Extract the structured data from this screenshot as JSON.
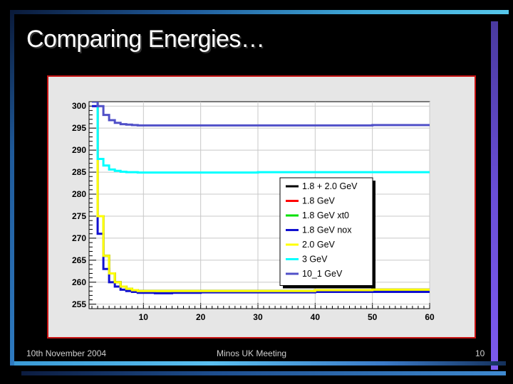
{
  "slide": {
    "title": "Comparing Energies…",
    "footer_date": "10th November 2004",
    "footer_meeting": "Minos UK Meeting",
    "page_number": "10"
  },
  "colors": {
    "frame_border": "#c81414",
    "chart_background": "#e6e6e6",
    "slide_background": "#000000"
  },
  "chart_data": {
    "type": "line",
    "title": "",
    "xlabel": "",
    "ylabel": "",
    "xlim": [
      0.5,
      60
    ],
    "ylim": [
      254,
      301
    ],
    "grid": true,
    "legend_position": "right",
    "x_ticks": [
      10,
      20,
      30,
      40,
      50,
      60
    ],
    "y_ticks": [
      255,
      260,
      265,
      270,
      275,
      280,
      285,
      290,
      295,
      300
    ],
    "x": [
      1,
      2,
      3,
      4,
      5,
      6,
      7,
      8,
      9,
      10,
      12,
      15,
      20,
      30,
      40,
      50,
      60
    ],
    "series": [
      {
        "name": "1.8 + 2.0 GeV",
        "color": "#000000",
        "values": [
          302,
          275,
          266,
          262,
          260,
          259,
          258.5,
          258.2,
          258,
          258,
          258,
          258,
          258,
          258,
          258.2,
          258.3,
          258.4
        ]
      },
      {
        "name": "1.8 GeV",
        "color": "#ff0000",
        "values": [
          302,
          275,
          266,
          262,
          260,
          259,
          258.5,
          258.2,
          258,
          258,
          258,
          258,
          258,
          258,
          258.2,
          258.3,
          258.4
        ]
      },
      {
        "name": "1.8 GeV xt0",
        "color": "#00e000",
        "values": [
          302,
          275,
          266,
          262,
          260,
          259,
          258.5,
          258.2,
          258,
          258,
          258,
          258,
          258,
          258,
          258.2,
          258.3,
          258.4
        ]
      },
      {
        "name": "1.8 GeV nox",
        "color": "#1010d0",
        "values": [
          300,
          271,
          263,
          260,
          259,
          258.3,
          258,
          257.8,
          257.6,
          257.6,
          257.5,
          257.6,
          257.7,
          257.7,
          257.8,
          257.8,
          257.9
        ]
      },
      {
        "name": "2.0 GeV",
        "color": "#ffff00",
        "values": [
          302,
          275,
          266,
          262,
          260,
          259,
          258.5,
          258.2,
          258,
          258,
          258,
          258,
          258,
          258,
          258.2,
          258.3,
          258.4
        ]
      },
      {
        "name": "3 GeV",
        "color": "#00ffff",
        "values": [
          301,
          288,
          286.5,
          285.6,
          285.3,
          285.1,
          285,
          285,
          284.9,
          284.9,
          284.9,
          284.9,
          284.9,
          285,
          285,
          285,
          285
        ]
      },
      {
        "name": "10_1 GeV",
        "color": "#5050c8",
        "values": [
          301,
          300,
          298,
          296.8,
          296.2,
          295.9,
          295.8,
          295.7,
          295.6,
          295.6,
          295.6,
          295.6,
          295.6,
          295.6,
          295.6,
          295.7,
          295.7
        ]
      }
    ]
  }
}
